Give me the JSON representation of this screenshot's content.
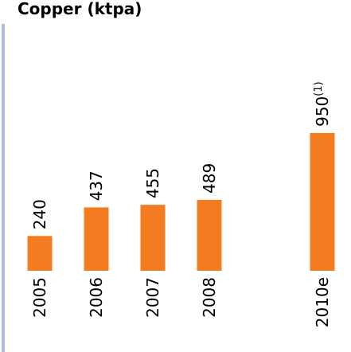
{
  "chart_data": {
    "type": "bar",
    "title": "Copper (ktpa)",
    "categories": [
      "2005",
      "2006",
      "2007",
      "2008",
      null,
      "2010e"
    ],
    "values": [
      240,
      437,
      455,
      489,
      null,
      950
    ],
    "color": "#f47c20",
    "annotation": "(1)"
  }
}
